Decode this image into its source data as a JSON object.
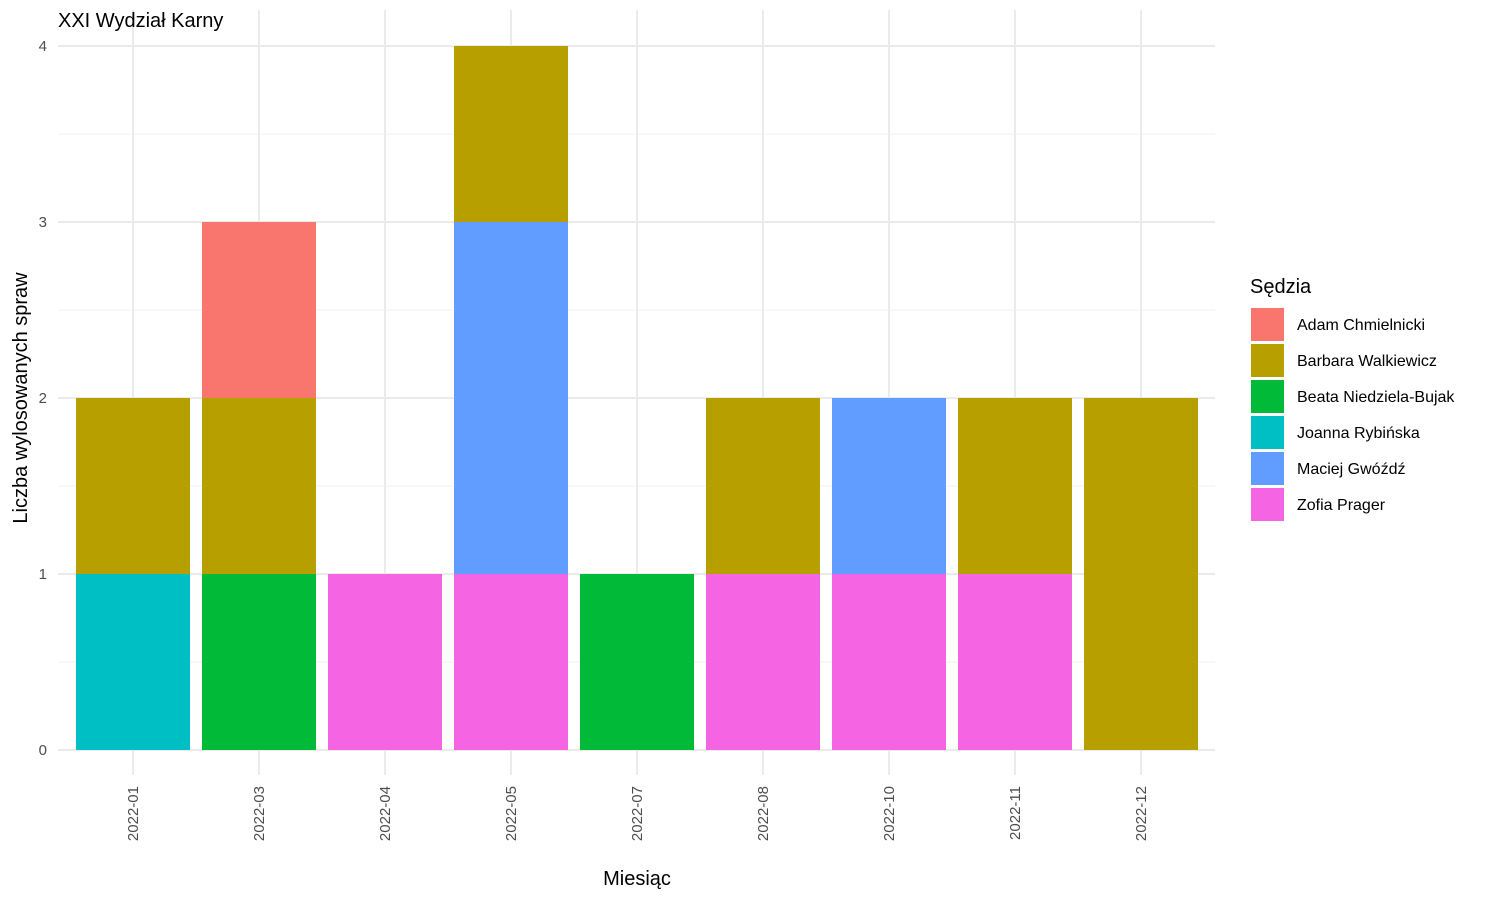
{
  "chart_data": {
    "type": "bar",
    "stacked": true,
    "title": "XXI Wydział Karny",
    "xlabel": "Miesiąc",
    "ylabel": "Liczba wylosowanych spraw",
    "ylim": [
      0,
      4
    ],
    "yticks": [
      0,
      1,
      2,
      3,
      4
    ],
    "grid": true,
    "legend_title": "Sędzia",
    "legend_position": "right",
    "categories": [
      "2022-01",
      "2022-03",
      "2022-04",
      "2022-05",
      "2022-07",
      "2022-08",
      "2022-10",
      "2022-11",
      "2022-12"
    ],
    "series": [
      {
        "name": "Adam Chmielnicki",
        "color": "#F8766D",
        "values": [
          0,
          1,
          0,
          0,
          0,
          0,
          0,
          0,
          0
        ]
      },
      {
        "name": "Barbara Walkiewicz",
        "color": "#B79F00",
        "values": [
          1,
          1,
          0,
          1,
          0,
          1,
          0,
          1,
          2
        ]
      },
      {
        "name": "Beata Niedziela-Bujak",
        "color": "#00BA38",
        "values": [
          0,
          1,
          0,
          0,
          1,
          0,
          0,
          0,
          0
        ]
      },
      {
        "name": "Joanna Rybińska",
        "color": "#00BFC4",
        "values": [
          1,
          0,
          0,
          0,
          0,
          0,
          0,
          0,
          0
        ]
      },
      {
        "name": "Maciej Gwóźdź",
        "color": "#619CFF",
        "values": [
          0,
          0,
          0,
          2,
          0,
          0,
          1,
          0,
          0
        ]
      },
      {
        "name": "Zofia Prager",
        "color": "#F564E3",
        "values": [
          0,
          0,
          1,
          1,
          0,
          1,
          1,
          1,
          0
        ]
      }
    ]
  }
}
